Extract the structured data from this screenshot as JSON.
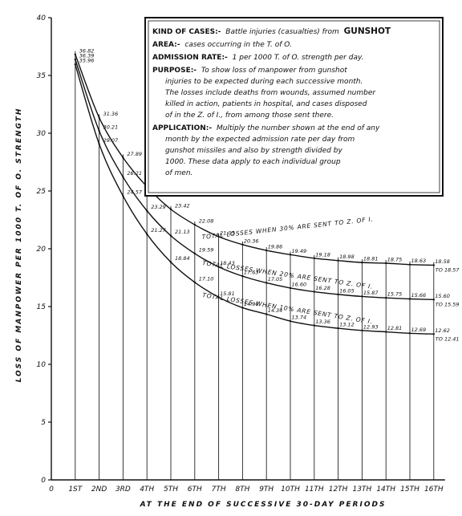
{
  "chart_data": {
    "type": "line",
    "x": [
      "1ST",
      "2ND",
      "3RD",
      "4TH",
      "5TH",
      "6TH",
      "7TH",
      "8TH",
      "9TH",
      "10TH",
      "11TH",
      "12TH",
      "13TH",
      "14TH",
      "15TH",
      "16TH"
    ],
    "xlabel": "AT THE END OF SUCCESSIVE 30-DAY PERIODS",
    "ylabel": "LOSS OF MANPOWER PER 1000 T. OF O. STRENGTH",
    "ylim": [
      0,
      40
    ],
    "yticks": [
      0,
      5,
      10,
      15,
      20,
      25,
      30,
      35,
      40
    ],
    "x_origin_label": "0",
    "grid": "vertical lines at each period",
    "series": [
      {
        "name": "TOTAL LOSSES WHEN 30% ARE SENT TO Z. OF I.",
        "values": [
          36.82,
          31.36,
          27.89,
          25.37,
          23.42,
          22.08,
          21.05,
          20.36,
          19.86,
          19.49,
          19.18,
          18.98,
          18.81,
          18.75,
          18.63,
          18.58
        ],
        "labels": [
          "36.82",
          "31.36",
          "27.89",
          "25.37",
          "23.42",
          "22.08",
          "21.05",
          "20.36",
          "19.86",
          "19.49",
          "19.18",
          "18.98",
          "18.81",
          "18.75",
          "18.63",
          "18.58"
        ],
        "end_label": "TO 18.57"
      },
      {
        "name": "TOTAL LOSSES WHEN 20% ARE SENT TO Z. OF I.",
        "values": [
          36.39,
          30.21,
          26.21,
          23.29,
          21.13,
          19.59,
          18.43,
          17.63,
          17.05,
          16.6,
          16.28,
          16.05,
          15.87,
          15.75,
          15.66,
          15.6
        ],
        "labels": [
          "36.39",
          "30.21",
          "26.21",
          "23.29",
          "21.13",
          "19.59",
          "18.43",
          "17.63",
          "17.05",
          "16.60",
          "16.28",
          "16.05",
          "15.87",
          "15.75",
          "15.66",
          "15.60"
        ],
        "end_label": "TO 15.59"
      },
      {
        "name": "TOTAL LOSSES WHEN 10% ARE SENT TO Z. OF I.",
        "values": [
          35.96,
          29.07,
          24.57,
          21.27,
          18.84,
          17.1,
          15.81,
          14.9,
          14.34,
          13.74,
          13.36,
          13.12,
          12.93,
          12.81,
          12.69,
          12.62
        ],
        "labels": [
          "35.96",
          "29.07",
          "24.57",
          "21.27",
          "18.84",
          "17.10",
          "15.81",
          "14.90",
          "14.34",
          "13.74",
          "13.36",
          "13.12",
          "12.93",
          "12.81",
          "12.69",
          "12.62"
        ],
        "end_label": "TO 12.41"
      }
    ],
    "annotation_box": {
      "kind_label": "KIND OF CASES:-",
      "kind_text": "Battle injuries (casualties) from",
      "kind_emph": "GUNSHOT",
      "area_label": "AREA:-",
      "area_text": "cases occurring in the T. of O.",
      "rate_label": "ADMISSION RATE:-",
      "rate_text": "1 per 1000 T. of O. strength per day.",
      "purpose_label": "PURPOSE:-",
      "purpose_lines": [
        "To show loss of manpower from gunshot",
        "injuries to be expected during each successive month.",
        "The losses include deaths from wounds, assumed number",
        "killed in action, patients in hospital, and cases disposed",
        "of in the Z. of I., from among those sent there."
      ],
      "application_label": "APPLICATION:-",
      "application_lines": [
        "Multiply the number shown at the end of any",
        "month by the expected admission rate per day from",
        "gunshot missiles and also by strength divided by",
        "1000. These data apply to each individual group",
        "of men."
      ]
    }
  }
}
